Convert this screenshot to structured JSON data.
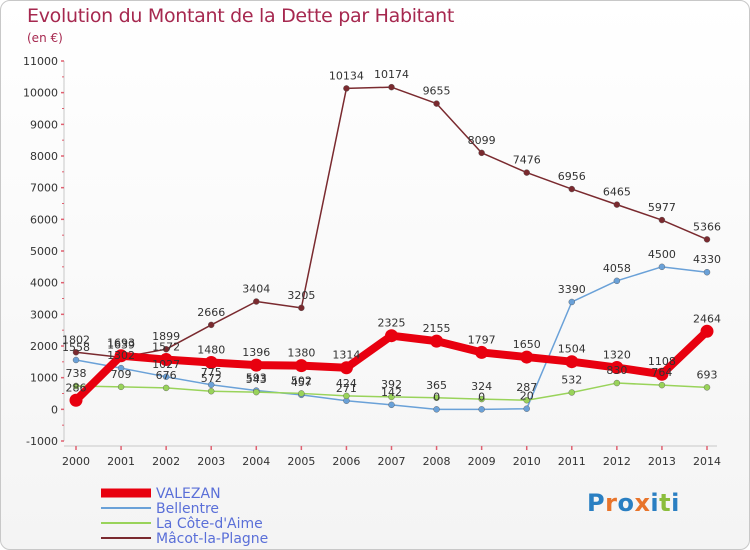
{
  "header": {
    "title": "Evolution du Montant de la Dette par Habitant",
    "subtitle": "(en €)"
  },
  "logo": {
    "text": "Proxiti",
    "colors": [
      "#2a7fc2",
      "#e8742b",
      "#2a7fc2",
      "#e8742b",
      "#2a7fc2",
      "#8bbd3c",
      "#2a7fc2"
    ]
  },
  "chart_data": {
    "type": "line",
    "x": [
      "2000",
      "2001",
      "2002",
      "2003",
      "2004",
      "2005",
      "2006",
      "2007",
      "2008",
      "2009",
      "2010",
      "2011",
      "2012",
      "2013",
      "2014"
    ],
    "ylim": [
      -1000,
      11000
    ],
    "yticks": [
      -1000,
      0,
      1000,
      2000,
      3000,
      4000,
      5000,
      6000,
      7000,
      8000,
      9000,
      10000,
      11000
    ],
    "grid": false,
    "legend_position": "bottom-left",
    "series": [
      {
        "name": "Mâcot-la-Plagne",
        "color": "#7a2a2f",
        "values": [
          1802,
          1639,
          1899,
          2666,
          3404,
          3205,
          10134,
          10174,
          9655,
          8099,
          7476,
          6956,
          6465,
          5977,
          5366
        ]
      },
      {
        "name": "Bellentre",
        "color": "#6aa1d8",
        "values": [
          1558,
          1302,
          1027,
          775,
          593,
          457,
          271,
          142,
          0,
          0,
          20,
          3390,
          4058,
          4500,
          4330
        ]
      },
      {
        "name": "La Côte-d'Aime",
        "color": "#99d35a",
        "values": [
          738,
          709,
          676,
          572,
          543,
          502,
          424,
          392,
          365,
          324,
          287,
          532,
          830,
          764,
          693
        ]
      },
      {
        "name": "VALEZAN",
        "color": "#e8000f",
        "values": [
          286,
          1693,
          1572,
          1480,
          1396,
          1380,
          1314,
          2325,
          2155,
          1797,
          1650,
          1504,
          1320,
          1108,
          2464
        ]
      }
    ],
    "legend": [
      "VALEZAN",
      "Bellentre",
      "La Côte-d'Aime",
      "Mâcot-la-Plagne"
    ]
  }
}
